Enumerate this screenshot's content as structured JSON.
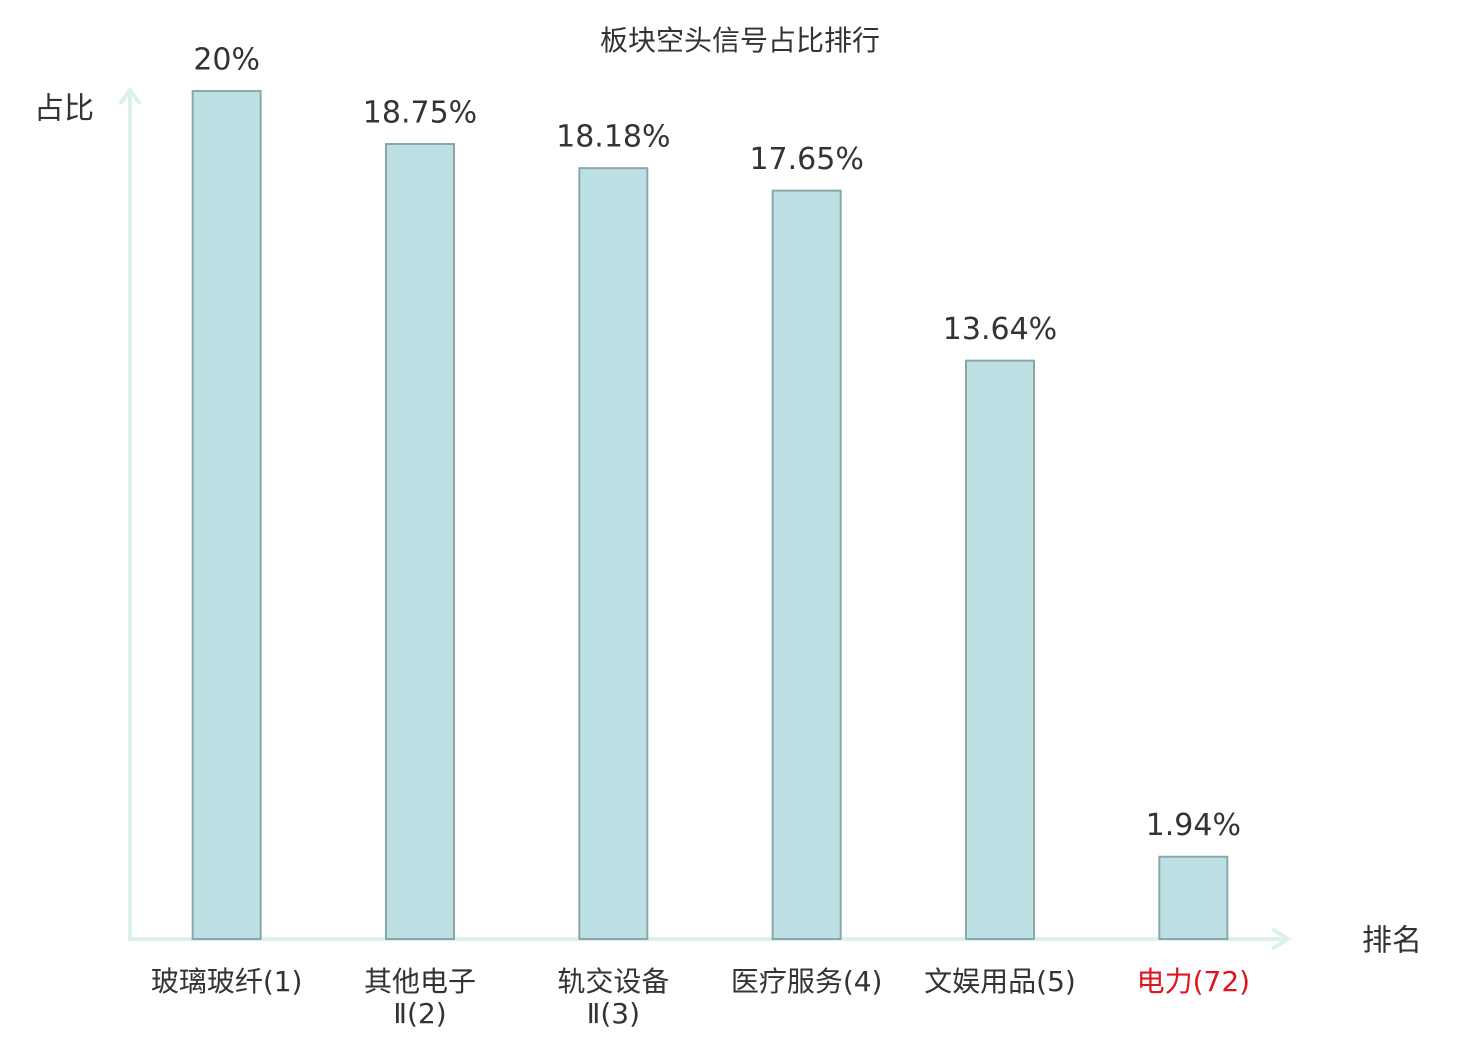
{
  "chart_data": {
    "type": "bar",
    "title": "板块空头信号占比排行",
    "y_label": "占比",
    "x_label": "排名",
    "categories": [
      "玻璃玻纤(1)",
      "其他电子\nⅡ(2)",
      "轨交设备\nⅡ(3)",
      "医疗服务(4)",
      "文娱用品(5)",
      "电力(72)"
    ],
    "category_colors": [
      "#333333",
      "#333333",
      "#333333",
      "#333333",
      "#333333",
      "#e0141e"
    ],
    "values": [
      20,
      18.75,
      18.18,
      17.65,
      13.64,
      1.94
    ],
    "value_labels": [
      "20%",
      "18.75%",
      "18.18%",
      "17.65%",
      "13.64%",
      "1.94%"
    ],
    "color": "#bce0e3",
    "edge_color": "#87a9aa",
    "ylim": [
      0,
      20
    ]
  }
}
